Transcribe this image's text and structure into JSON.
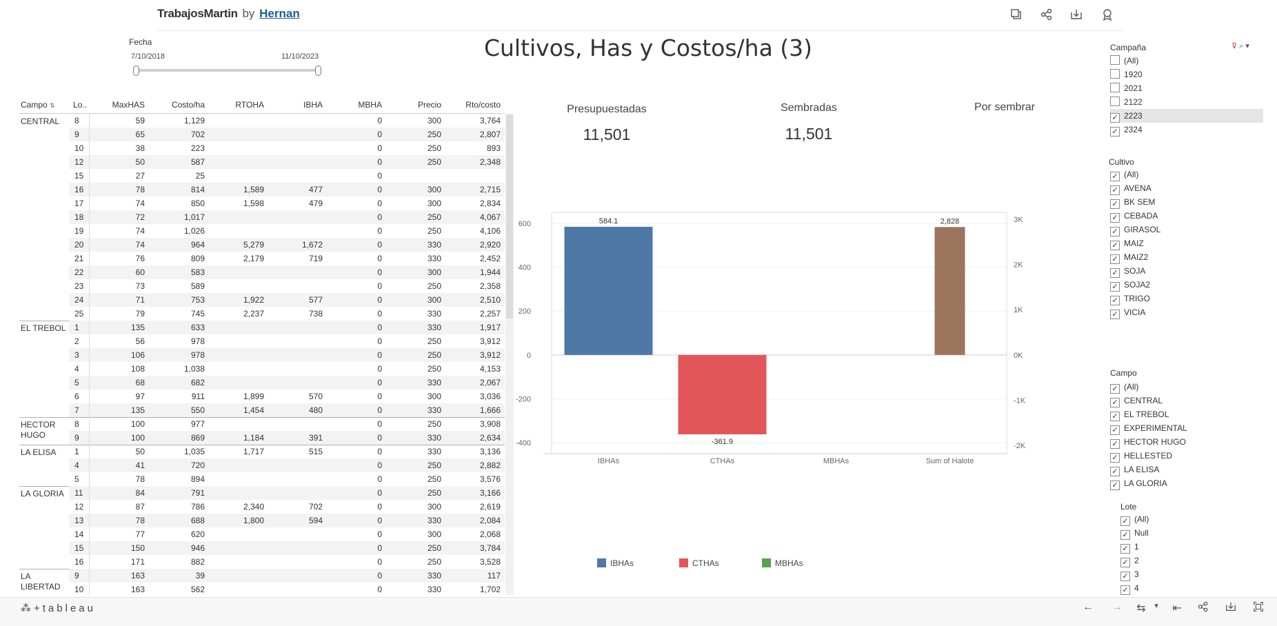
{
  "header": {
    "brand": "TrabajosMartin",
    "by": "by",
    "author": "Hernan",
    "icons": [
      "duplicate-icon",
      "share-icon",
      "download-icon",
      "badge-icon"
    ]
  },
  "fecha": {
    "title": "Fecha",
    "start": "7/10/2018",
    "end": "11/10/2023"
  },
  "page_title": "Cultivos, Has y Costos/ha (3)",
  "table": {
    "columns": [
      "Campo",
      "Lo..",
      "MaxHAS",
      "Costo/ha",
      "RTOHA",
      "IBHA",
      "MBHA",
      "Precio",
      "Rto/costo"
    ],
    "groups": [
      {
        "campo": "CENTRAL",
        "rows": [
          [
            "8",
            "59",
            "1,129",
            "",
            "",
            "0",
            "300",
            "3,764"
          ],
          [
            "9",
            "65",
            "702",
            "",
            "",
            "0",
            "250",
            "2,807"
          ],
          [
            "10",
            "38",
            "223",
            "",
            "",
            "0",
            "250",
            "893"
          ],
          [
            "12",
            "50",
            "587",
            "",
            "",
            "0",
            "250",
            "2,348"
          ],
          [
            "15",
            "27",
            "25",
            "",
            "",
            "0",
            "",
            ""
          ],
          [
            "16",
            "78",
            "814",
            "1,589",
            "477",
            "0",
            "300",
            "2,715"
          ],
          [
            "17",
            "74",
            "850",
            "1,598",
            "479",
            "0",
            "300",
            "2,834"
          ],
          [
            "18",
            "72",
            "1,017",
            "",
            "",
            "0",
            "250",
            "4,067"
          ],
          [
            "19",
            "74",
            "1,026",
            "",
            "",
            "0",
            "250",
            "4,106"
          ],
          [
            "20",
            "74",
            "964",
            "5,279",
            "1,672",
            "0",
            "330",
            "2,920"
          ],
          [
            "21",
            "76",
            "809",
            "2,179",
            "719",
            "0",
            "330",
            "2,452"
          ],
          [
            "22",
            "60",
            "583",
            "",
            "",
            "0",
            "300",
            "1,944"
          ],
          [
            "23",
            "73",
            "589",
            "",
            "",
            "0",
            "250",
            "2,358"
          ],
          [
            "24",
            "71",
            "753",
            "1,922",
            "577",
            "0",
            "300",
            "2,510"
          ],
          [
            "25",
            "79",
            "745",
            "2,237",
            "738",
            "0",
            "330",
            "2,257"
          ]
        ]
      },
      {
        "campo": "EL TREBOL",
        "rows": [
          [
            "1",
            "135",
            "633",
            "",
            "",
            "0",
            "330",
            "1,917"
          ],
          [
            "2",
            "56",
            "978",
            "",
            "",
            "0",
            "250",
            "3,912"
          ],
          [
            "3",
            "106",
            "978",
            "",
            "",
            "0",
            "250",
            "3,912"
          ],
          [
            "4",
            "108",
            "1,038",
            "",
            "",
            "0",
            "250",
            "4,153"
          ],
          [
            "5",
            "68",
            "682",
            "",
            "",
            "0",
            "330",
            "2,067"
          ],
          [
            "6",
            "97",
            "911",
            "1,899",
            "570",
            "0",
            "300",
            "3,036"
          ],
          [
            "7",
            "135",
            "550",
            "1,454",
            "480",
            "0",
            "330",
            "1,666"
          ]
        ]
      },
      {
        "campo": "HECTOR HUGO",
        "rows": [
          [
            "8",
            "100",
            "977",
            "",
            "",
            "0",
            "250",
            "3,908"
          ],
          [
            "9",
            "100",
            "869",
            "1,184",
            "391",
            "0",
            "330",
            "2,634"
          ]
        ]
      },
      {
        "campo": "LA ELISA",
        "rows": [
          [
            "1",
            "50",
            "1,035",
            "1,717",
            "515",
            "0",
            "330",
            "3,136"
          ],
          [
            "4",
            "41",
            "720",
            "",
            "",
            "0",
            "250",
            "2,882"
          ],
          [
            "5",
            "78",
            "894",
            "",
            "",
            "0",
            "250",
            "3,576"
          ]
        ]
      },
      {
        "campo": "LA GLORIA",
        "rows": [
          [
            "11",
            "84",
            "791",
            "",
            "",
            "0",
            "250",
            "3,166"
          ],
          [
            "12",
            "87",
            "786",
            "2,340",
            "702",
            "0",
            "300",
            "2,619"
          ],
          [
            "13",
            "78",
            "688",
            "1,800",
            "594",
            "0",
            "330",
            "2,084"
          ],
          [
            "14",
            "77",
            "620",
            "",
            "",
            "0",
            "300",
            "2,068"
          ],
          [
            "15",
            "150",
            "946",
            "",
            "",
            "0",
            "250",
            "3,784"
          ],
          [
            "16",
            "171",
            "882",
            "",
            "",
            "0",
            "250",
            "3,528"
          ]
        ]
      },
      {
        "campo": "LA LIBERTAD",
        "rows": [
          [
            "9",
            "163",
            "39",
            "",
            "",
            "0",
            "330",
            "117"
          ],
          [
            "10",
            "163",
            "562",
            "",
            "",
            "0",
            "330",
            "1,702"
          ]
        ]
      }
    ]
  },
  "kpis": [
    {
      "label": "Presupuestadas",
      "value": "11,501"
    },
    {
      "label": "Sembradas",
      "value": "11,501"
    },
    {
      "label": "Por sembrar",
      "value": ""
    }
  ],
  "chart_data": {
    "type": "bar",
    "categories": [
      "IBHAs",
      "CTHAs",
      "MBHAs",
      "Sum of Halote"
    ],
    "series": [
      {
        "name": "IBHAs",
        "values": [
          584.1,
          null,
          null,
          null
        ],
        "axis": "left",
        "color": "#4e79a7"
      },
      {
        "name": "CTHAs",
        "values": [
          null,
          -361.9,
          null,
          null
        ],
        "axis": "left",
        "color": "#e15759"
      },
      {
        "name": "MBHAs",
        "values": [
          null,
          null,
          0,
          null
        ],
        "axis": "left",
        "color": "#59a14f"
      },
      {
        "values": [
          null,
          null,
          null,
          2828
        ],
        "axis": "right",
        "color": "#9c755f"
      }
    ],
    "data_labels": [
      "584.1",
      "-361.9",
      "",
      "2,828"
    ],
    "left_axis": {
      "ylim": [
        -450,
        650
      ],
      "ticks": [
        600,
        400,
        200,
        0,
        -200,
        -400
      ],
      "tick_labels": [
        "600",
        "400",
        "200",
        "0",
        "-200",
        "-400"
      ]
    },
    "right_axis": {
      "ylim": [
        -2000,
        3000
      ],
      "ticks": [
        3000,
        2000,
        1000,
        0,
        -1000,
        -2000
      ],
      "tick_labels": [
        "3K",
        "2K",
        "1K",
        "0K",
        "-1K",
        "-2K"
      ]
    },
    "legend": {
      "position": "bottom",
      "entries": [
        "IBHAs",
        "CTHAs",
        "MBHAs"
      ]
    },
    "grid": true
  },
  "filters": {
    "campana": {
      "title": "Campaña",
      "items": [
        {
          "label": "(All)",
          "checked": false
        },
        {
          "label": "1920",
          "checked": false
        },
        {
          "label": "2021",
          "checked": false
        },
        {
          "label": "2122",
          "checked": false
        },
        {
          "label": "2223",
          "checked": true,
          "selected": true
        },
        {
          "label": "2324",
          "checked": true
        }
      ]
    },
    "cultivo": {
      "title": "Cultivo",
      "items": [
        {
          "label": "(All)",
          "checked": true
        },
        {
          "label": "AVENA",
          "checked": true
        },
        {
          "label": "BK SEM",
          "checked": true
        },
        {
          "label": "CEBADA",
          "checked": true
        },
        {
          "label": "GIRASOL",
          "checked": true
        },
        {
          "label": "MAIZ",
          "checked": true
        },
        {
          "label": "MAIZ2",
          "checked": true
        },
        {
          "label": "SOJA",
          "checked": true
        },
        {
          "label": "SOJA2",
          "checked": true
        },
        {
          "label": "TRIGO",
          "checked": true
        },
        {
          "label": "VICIA",
          "checked": true
        }
      ]
    },
    "campo": {
      "title": "Campo",
      "items": [
        {
          "label": "(All)",
          "checked": true
        },
        {
          "label": "CENTRAL",
          "checked": true
        },
        {
          "label": "EL TREBOL",
          "checked": true
        },
        {
          "label": "EXPERIMENTAL",
          "checked": true
        },
        {
          "label": "HECTOR HUGO",
          "checked": true
        },
        {
          "label": "HELLESTED",
          "checked": true
        },
        {
          "label": "LA ELISA",
          "checked": true
        },
        {
          "label": "LA GLORIA",
          "checked": true
        }
      ]
    },
    "lote": {
      "title": "Lote",
      "items": [
        {
          "label": "(All)",
          "checked": true
        },
        {
          "label": "Null",
          "checked": true
        },
        {
          "label": "1",
          "checked": true
        },
        {
          "label": "2",
          "checked": true
        },
        {
          "label": "3",
          "checked": true
        },
        {
          "label": "4",
          "checked": true
        }
      ]
    }
  },
  "footer": {
    "logo": "+tableau",
    "icons": [
      "undo-icon",
      "redo-icon",
      "revert-icon",
      "dropdown-icon",
      "reset-icon",
      "share-icon",
      "download-icon",
      "fullscreen-icon"
    ]
  },
  "colors": {
    "accent": "#1a5b98",
    "shade": "#f3f3f3"
  }
}
